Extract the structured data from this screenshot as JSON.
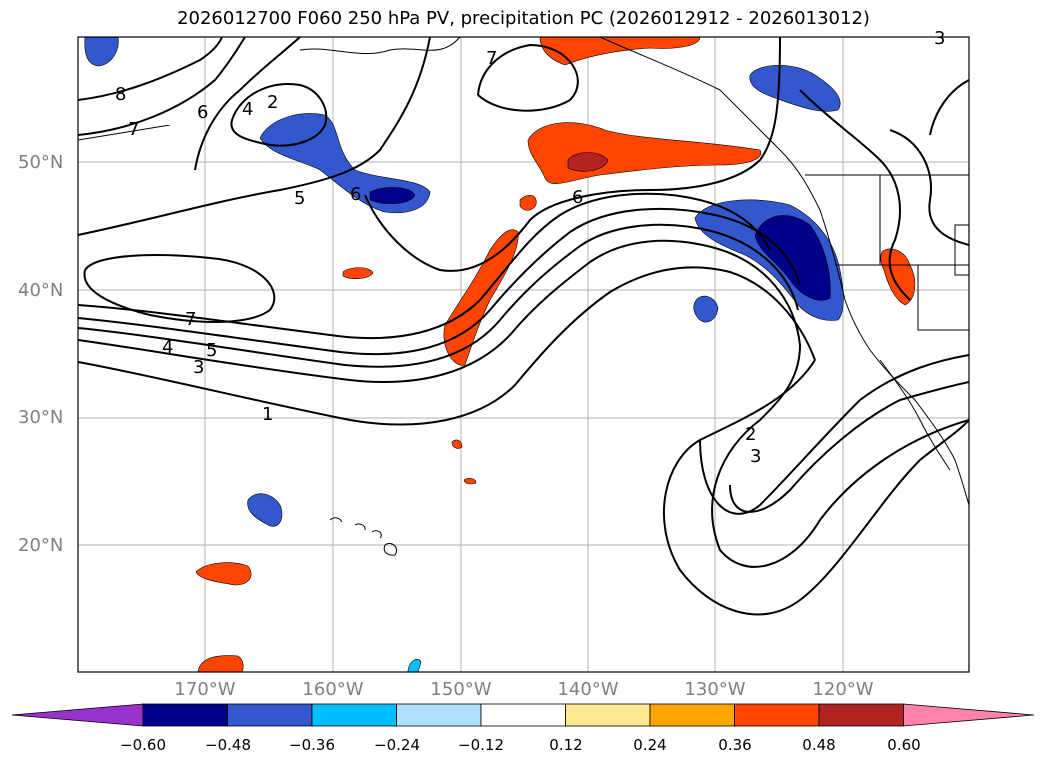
{
  "title": "2026012700 F060 250 hPa PV, precipitation PC (2026012912 - 2026013012)",
  "lat_labels": [
    "50°N",
    "40°N",
    "30°N",
    "20°N"
  ],
  "lon_labels": [
    "170°W",
    "160°W",
    "150°W",
    "140°W",
    "130°W",
    "120°W"
  ],
  "colorbar": {
    "ticks": [
      "−0.60",
      "−0.48",
      "−0.36",
      "−0.24",
      "−0.12",
      "0.12",
      "0.24",
      "0.36",
      "0.48",
      "0.60"
    ],
    "colors": [
      "#9932CC",
      "#00008B",
      "#3357CC",
      "#00BFFF",
      "#ADDFFF",
      "#FFFFFF",
      "#FFE88F",
      "#FFA500",
      "#FF4500",
      "#B22222",
      "#FF82AB"
    ]
  },
  "pv_contour_labels": [
    "8",
    "7",
    "6",
    "4",
    "2",
    "5",
    "6",
    "7",
    "7",
    "5",
    "4",
    "3",
    "1",
    "6",
    "2",
    "3",
    "3"
  ],
  "colors": {
    "negative_dark": "#00008B",
    "negative_mid": "#3357CC",
    "negative_light": "#00BFFF",
    "positive_light": "#FFE88F",
    "positive_mid": "#FFA500",
    "positive_strong": "#FF4500",
    "positive_dark": "#B22222",
    "gridline": "#b0b0b0",
    "tick_label": "#808080"
  }
}
